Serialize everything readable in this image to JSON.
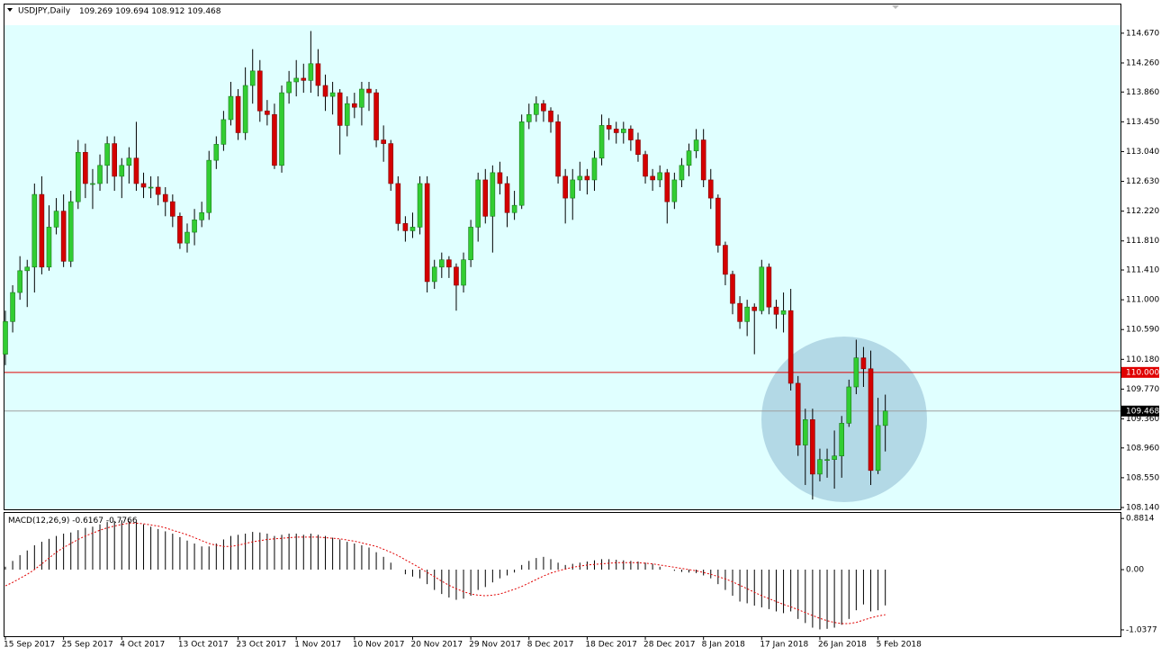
{
  "chart_data": {
    "type": "candlestick",
    "symbol": "USDJPY,Daily",
    "categories": [
      "15 Sep 2017",
      null,
      null,
      null,
      null,
      null,
      null,
      null,
      "25 Sep 2017",
      null,
      null,
      null,
      null,
      null,
      null,
      null,
      "4 Oct 2017",
      null,
      null,
      null,
      null,
      null,
      null,
      null,
      "13 Oct 2017",
      null,
      null,
      null,
      null,
      null,
      null,
      null,
      "23 Oct 2017",
      null,
      null,
      null,
      null,
      null,
      null,
      null,
      "1 Nov 2017",
      null,
      null,
      null,
      null,
      null,
      null,
      null,
      "10 Nov 2017",
      null,
      null,
      null,
      null,
      null,
      null,
      null,
      "20 Nov 2017",
      null,
      null,
      null,
      null,
      null,
      null,
      null,
      "29 Nov 2017",
      null,
      null,
      null,
      null,
      null,
      null,
      null,
      "8 Dec 2017",
      null,
      null,
      null,
      null,
      null,
      null,
      null,
      "18 Dec 2017",
      null,
      null,
      null,
      null,
      null,
      null,
      null,
      "28 Dec 2017",
      null,
      null,
      null,
      null,
      null,
      null,
      null,
      "8 Jan 2018",
      null,
      null,
      null,
      null,
      null,
      null,
      null,
      "17 Jan 2018",
      null,
      null,
      null,
      null,
      null,
      null,
      null,
      "26 Jan 2018",
      null,
      null,
      null,
      null,
      null,
      null,
      null,
      "5 Feb 2018",
      null
    ],
    "open": [
      110.25,
      110.7,
      111.1,
      111.4,
      111.45,
      112.45,
      111.45,
      112.0,
      112.22,
      111.53,
      112.35,
      113.03,
      112.6,
      112.6,
      112.85,
      113.15,
      112.7,
      112.85,
      112.95,
      112.6,
      112.55,
      112.55,
      112.45,
      112.35,
      112.15,
      111.78,
      111.93,
      112.1,
      112.2,
      112.92,
      113.14,
      113.48,
      113.8,
      113.3,
      113.95,
      114.15,
      113.6,
      113.55,
      112.85,
      113.85,
      114.0,
      114.05,
      114.02,
      114.25,
      113.95,
      113.8,
      113.85,
      113.4,
      113.7,
      113.65,
      113.9,
      113.85,
      113.2,
      113.15,
      112.6,
      112.05,
      111.95,
      112.0,
      112.6,
      111.25,
      111.45,
      111.55,
      111.45,
      111.2,
      111.55,
      112.0,
      112.65,
      112.15,
      112.75,
      112.6,
      112.2,
      112.3,
      113.45,
      113.55,
      113.7,
      113.6,
      113.45,
      112.7,
      112.4,
      112.65,
      112.7,
      112.65,
      112.95,
      113.4,
      113.35,
      113.3,
      113.35,
      113.2,
      113.0,
      112.7,
      112.65,
      112.75,
      112.35,
      112.65,
      112.85,
      113.05,
      113.2,
      112.65,
      112.4,
      111.75,
      111.35,
      110.95,
      110.7,
      110.9,
      110.85,
      111.45,
      110.9,
      110.8,
      110.85,
      109.85,
      109.0,
      109.35,
      108.6,
      108.8,
      108.8,
      108.85,
      109.3,
      109.8,
      110.2,
      110.05,
      108.65,
      109.269
    ],
    "high": [
      110.85,
      111.2,
      111.6,
      111.55,
      112.6,
      112.7,
      112.3,
      112.4,
      112.45,
      112.5,
      113.2,
      113.15,
      112.8,
      113.0,
      113.25,
      113.25,
      112.95,
      113.1,
      113.45,
      112.75,
      112.7,
      112.7,
      112.55,
      112.45,
      112.2,
      112.05,
      112.25,
      112.35,
      113.05,
      113.25,
      113.6,
      114.0,
      113.9,
      114.2,
      114.45,
      114.3,
      113.75,
      113.7,
      113.95,
      114.15,
      114.3,
      114.25,
      114.7,
      114.45,
      114.1,
      114.0,
      113.9,
      113.8,
      113.85,
      114.0,
      114.0,
      113.9,
      113.4,
      113.2,
      112.7,
      112.15,
      112.2,
      112.7,
      112.7,
      111.55,
      111.65,
      111.6,
      111.5,
      111.65,
      112.1,
      112.75,
      112.8,
      112.85,
      112.9,
      112.7,
      112.5,
      113.55,
      113.7,
      113.8,
      113.75,
      113.65,
      113.55,
      112.8,
      112.8,
      112.9,
      112.8,
      113.05,
      113.55,
      113.5,
      113.45,
      113.45,
      113.4,
      113.3,
      113.05,
      112.8,
      112.85,
      112.8,
      112.75,
      112.95,
      113.15,
      113.35,
      113.35,
      112.8,
      112.45,
      111.8,
      111.4,
      111.05,
      111.0,
      110.95,
      111.55,
      111.5,
      111.0,
      111.1,
      111.15,
      109.95,
      109.5,
      109.5,
      108.95,
      108.95,
      109.2,
      109.4,
      109.9,
      110.45,
      110.35,
      110.3,
      109.65,
      109.694
    ],
    "low": [
      110.1,
      110.55,
      111.0,
      110.9,
      111.1,
      111.35,
      111.4,
      111.9,
      111.45,
      111.45,
      112.25,
      112.4,
      112.25,
      112.5,
      112.6,
      112.5,
      112.4,
      112.6,
      112.5,
      112.4,
      112.4,
      112.3,
      112.15,
      112.0,
      111.7,
      111.65,
      111.75,
      112.0,
      112.1,
      112.8,
      113.05,
      113.4,
      113.2,
      113.2,
      113.7,
      113.45,
      113.4,
      112.8,
      112.75,
      113.7,
      113.8,
      113.85,
      113.85,
      113.8,
      113.6,
      113.55,
      113.0,
      113.25,
      113.5,
      113.4,
      113.6,
      113.1,
      112.9,
      112.5,
      111.95,
      111.8,
      111.85,
      111.9,
      111.1,
      111.15,
      111.3,
      111.3,
      110.85,
      111.1,
      111.45,
      111.8,
      112.05,
      111.65,
      112.45,
      112.0,
      112.1,
      112.25,
      113.35,
      113.45,
      113.45,
      113.3,
      112.6,
      112.05,
      112.1,
      112.5,
      112.45,
      112.5,
      112.85,
      113.2,
      113.15,
      113.15,
      113.05,
      112.9,
      112.6,
      112.5,
      112.55,
      112.05,
      112.25,
      112.55,
      112.7,
      112.95,
      112.55,
      112.25,
      111.65,
      111.2,
      110.8,
      110.6,
      110.5,
      110.25,
      110.8,
      110.8,
      110.6,
      110.55,
      109.75,
      108.85,
      108.45,
      108.25,
      108.5,
      108.55,
      108.4,
      108.55,
      109.25,
      109.7,
      109.8,
      108.45,
      108.6,
      108.912
    ],
    "close": [
      110.7,
      111.1,
      111.4,
      111.45,
      112.45,
      111.45,
      112.0,
      112.22,
      111.53,
      112.35,
      113.03,
      112.6,
      112.6,
      112.85,
      113.15,
      112.7,
      112.85,
      112.95,
      112.6,
      112.55,
      112.55,
      112.45,
      112.35,
      112.15,
      111.78,
      111.93,
      112.1,
      112.2,
      112.92,
      113.14,
      113.48,
      113.8,
      113.3,
      113.95,
      114.15,
      113.6,
      113.55,
      112.85,
      113.85,
      114.0,
      114.05,
      114.02,
      114.25,
      113.95,
      113.8,
      113.85,
      113.4,
      113.7,
      113.65,
      113.9,
      113.85,
      113.2,
      113.15,
      112.6,
      112.05,
      111.95,
      112.0,
      112.6,
      111.25,
      111.45,
      111.55,
      111.45,
      111.2,
      111.55,
      112.0,
      112.65,
      112.15,
      112.75,
      112.6,
      112.2,
      112.3,
      113.45,
      113.55,
      113.7,
      113.6,
      113.45,
      112.7,
      112.4,
      112.65,
      112.7,
      112.65,
      112.95,
      113.4,
      113.35,
      113.3,
      113.35,
      113.2,
      113.0,
      112.7,
      112.65,
      112.75,
      112.35,
      112.65,
      112.85,
      113.05,
      113.2,
      112.65,
      112.4,
      111.75,
      111.35,
      110.95,
      110.7,
      110.9,
      110.85,
      111.45,
      110.9,
      110.8,
      110.85,
      109.85,
      109.0,
      109.35,
      108.6,
      108.8,
      108.8,
      108.85,
      109.3,
      109.8,
      110.2,
      110.05,
      108.65,
      109.269,
      109.468
    ],
    "up_color": "#32cd32",
    "down_color": "#d40000",
    "ylim": [
      108.115,
      114.78
    ],
    "yticks": [
      {
        "value": 114.67,
        "label": "114.670"
      },
      {
        "value": 114.26,
        "label": "114.260"
      },
      {
        "value": 113.86,
        "label": "113.860"
      },
      {
        "value": 113.45,
        "label": "113.450"
      },
      {
        "value": 113.04,
        "label": "113.040"
      },
      {
        "value": 112.63,
        "label": "112.630"
      },
      {
        "value": 112.22,
        "label": "112.220"
      },
      {
        "value": 111.81,
        "label": "111.810"
      },
      {
        "value": 111.41,
        "label": "111.410"
      },
      {
        "value": 111.0,
        "label": "111.000"
      },
      {
        "value": 110.59,
        "label": "110.590"
      },
      {
        "value": 110.18,
        "label": "110.180"
      },
      {
        "value": 109.77,
        "label": "109.770"
      },
      {
        "value": 109.36,
        "label": "109.360"
      },
      {
        "value": 108.96,
        "label": "108.960"
      },
      {
        "value": 108.55,
        "label": "108.550"
      },
      {
        "value": 108.14,
        "label": "108.140"
      }
    ],
    "level": {
      "value": 110,
      "label": "110.000",
      "color": "#e00000"
    },
    "macd": {
      "title": "MACD(12,26,9)",
      "histogram": [
        0.05,
        0.15,
        0.25,
        0.33,
        0.42,
        0.48,
        0.53,
        0.58,
        0.62,
        0.64,
        0.68,
        0.72,
        0.74,
        0.78,
        0.82,
        0.84,
        0.85,
        0.84,
        0.82,
        0.78,
        0.74,
        0.7,
        0.66,
        0.62,
        0.56,
        0.5,
        0.45,
        0.4,
        0.4,
        0.45,
        0.52,
        0.58,
        0.6,
        0.62,
        0.65,
        0.64,
        0.62,
        0.58,
        0.6,
        0.62,
        0.62,
        0.6,
        0.62,
        0.6,
        0.58,
        0.55,
        0.52,
        0.48,
        0.45,
        0.42,
        0.38,
        0.3,
        0.22,
        0.12,
        0.0,
        -0.08,
        -0.12,
        -0.15,
        -0.25,
        -0.35,
        -0.42,
        -0.48,
        -0.52,
        -0.5,
        -0.45,
        -0.35,
        -0.3,
        -0.22,
        -0.15,
        -0.1,
        -0.05,
        0.08,
        0.15,
        0.2,
        0.22,
        0.18,
        0.12,
        0.08,
        0.1,
        0.12,
        0.14,
        0.16,
        0.18,
        0.18,
        0.17,
        0.16,
        0.15,
        0.14,
        0.12,
        0.1,
        0.05,
        0.0,
        -0.02,
        -0.04,
        -0.05,
        -0.06,
        -0.1,
        -0.15,
        -0.25,
        -0.35,
        -0.45,
        -0.55,
        -0.58,
        -0.62,
        -0.65,
        -0.68,
        -0.72,
        -0.75,
        -0.72,
        -0.85,
        -0.92,
        -1.0,
        -1.03,
        -1.02,
        -1.0,
        -0.95,
        -0.85,
        -0.7,
        -0.6,
        -0.72,
        -0.7,
        -0.6167
      ],
      "signal": [
        -0.28,
        -0.22,
        -0.15,
        -0.08,
        0.0,
        0.1,
        0.2,
        0.3,
        0.38,
        0.45,
        0.52,
        0.58,
        0.63,
        0.68,
        0.72,
        0.75,
        0.78,
        0.8,
        0.8,
        0.79,
        0.77,
        0.75,
        0.72,
        0.68,
        0.64,
        0.6,
        0.55,
        0.5,
        0.45,
        0.42,
        0.4,
        0.4,
        0.42,
        0.45,
        0.48,
        0.5,
        0.52,
        0.53,
        0.54,
        0.55,
        0.56,
        0.56,
        0.56,
        0.56,
        0.55,
        0.54,
        0.53,
        0.51,
        0.49,
        0.46,
        0.43,
        0.4,
        0.35,
        0.3,
        0.24,
        0.17,
        0.1,
        0.03,
        -0.05,
        -0.12,
        -0.2,
        -0.27,
        -0.33,
        -0.38,
        -0.42,
        -0.44,
        -0.45,
        -0.44,
        -0.42,
        -0.38,
        -0.34,
        -0.29,
        -0.23,
        -0.17,
        -0.11,
        -0.06,
        -0.02,
        0.01,
        0.04,
        0.06,
        0.08,
        0.09,
        0.1,
        0.11,
        0.12,
        0.12,
        0.12,
        0.12,
        0.11,
        0.1,
        0.08,
        0.06,
        0.04,
        0.02,
        0.0,
        -0.02,
        -0.05,
        -0.08,
        -0.12,
        -0.16,
        -0.21,
        -0.27,
        -0.33,
        -0.39,
        -0.45,
        -0.5,
        -0.55,
        -0.6,
        -0.64,
        -0.69,
        -0.74,
        -0.79,
        -0.84,
        -0.88,
        -0.91,
        -0.93,
        -0.93,
        -0.91,
        -0.87,
        -0.83,
        -0.8,
        -0.7766
      ],
      "signal_color": "#e00000",
      "ylim": [
        -1.147,
        0.977
      ],
      "yticks": [
        0.8814,
        {
          "value": 0,
          "label": "0.00"
        },
        -1.0377
      ]
    }
  }
}
